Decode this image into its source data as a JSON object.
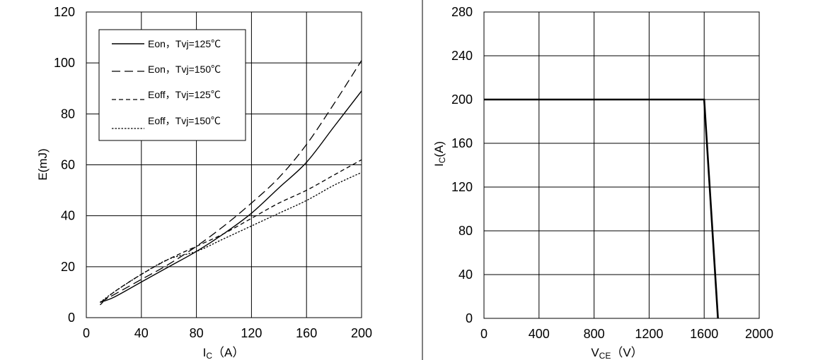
{
  "chart_data": [
    {
      "type": "line",
      "xlabel": "IC（A）",
      "xlabel_main": "I",
      "xlabel_sub": "C",
      "xlabel_unit": "（A）",
      "ylabel": "E(mJ)",
      "xlim": [
        0,
        200
      ],
      "ylim": [
        0,
        120
      ],
      "xticks": [
        "0",
        "40",
        "80",
        "120",
        "160",
        "200"
      ],
      "yticks": [
        "0",
        "20",
        "40",
        "60",
        "80",
        "100",
        "120"
      ],
      "grid": true,
      "legend_position": "top-left",
      "series": [
        {
          "name": "Eon，Tvj=125℃",
          "dash": "solid",
          "x": [
            10,
            20,
            40,
            60,
            80,
            100,
            120,
            140,
            160,
            180,
            200
          ],
          "y": [
            6,
            8,
            14,
            20,
            26,
            33,
            41,
            51,
            61,
            75,
            89
          ]
        },
        {
          "name": "Eon，Tvj=150℃",
          "dash": "longdash",
          "x": [
            10,
            20,
            40,
            60,
            80,
            100,
            120,
            140,
            160,
            180,
            200
          ],
          "y": [
            6,
            9,
            15,
            21,
            28,
            36,
            45,
            55,
            68,
            84,
            101
          ]
        },
        {
          "name": "Eoff，Tvj=125℃",
          "dash": "dash",
          "x": [
            10,
            20,
            40,
            60,
            80,
            100,
            120,
            140,
            160,
            180,
            200
          ],
          "y": [
            5,
            10,
            17,
            23,
            28,
            33,
            39,
            45,
            50,
            56,
            62
          ]
        },
        {
          "name": "Eoff，Tvj=150℃",
          "dash": "dot",
          "x": [
            10,
            20,
            40,
            60,
            80,
            100,
            120,
            140,
            160,
            180,
            200
          ],
          "y": [
            6,
            10,
            17,
            23,
            26,
            31,
            36,
            41,
            46,
            52,
            57
          ]
        }
      ]
    },
    {
      "type": "line",
      "xlabel": "VCE（V）",
      "xlabel_main": "V",
      "xlabel_sub": "CE",
      "xlabel_unit": "（V）",
      "ylabel": "IC(A)",
      "ylabel_main": "I",
      "ylabel_sub": "C",
      "ylabel_unit": "(A)",
      "xlim": [
        0,
        2000
      ],
      "ylim": [
        0,
        280
      ],
      "xticks": [
        "0",
        "400",
        "800",
        "1200",
        "1600",
        "2000"
      ],
      "yticks": [
        "0",
        "40",
        "80",
        "120",
        "160",
        "200",
        "240",
        "280"
      ],
      "grid": true,
      "series": [
        {
          "dash": "solid",
          "x": [
            0,
            1600,
            1700
          ],
          "y": [
            200,
            200,
            0
          ]
        }
      ]
    }
  ]
}
